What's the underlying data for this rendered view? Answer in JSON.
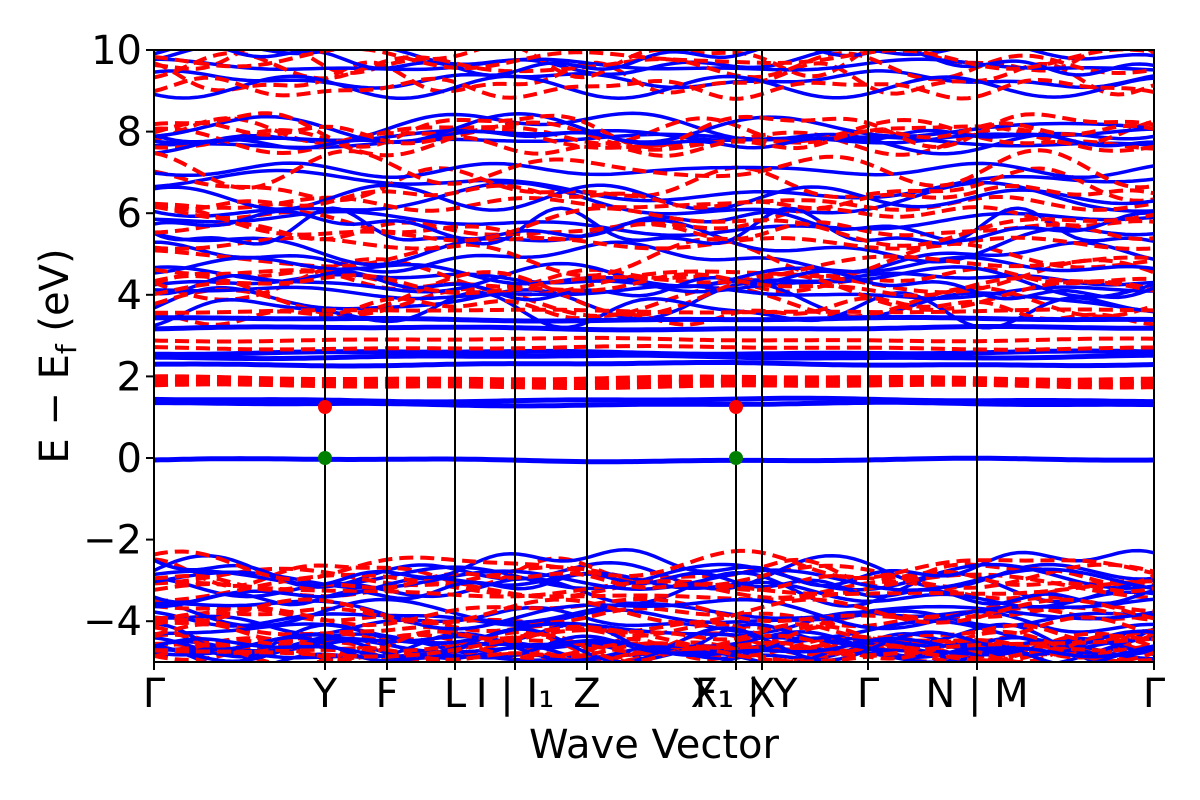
{
  "chart_data": {
    "type": "line",
    "title": "",
    "xlabel": "Wave Vector",
    "ylabel_parts": {
      "main": "E − E",
      "subscript": "f",
      "unit": " (eV)"
    },
    "ylim": [
      -5,
      10
    ],
    "yticks": [
      -4,
      -2,
      0,
      2,
      4,
      6,
      8,
      10
    ],
    "ytick_labels": [
      "−4",
      "−2",
      "0",
      "2",
      "4",
      "6",
      "8",
      "10"
    ],
    "xlim": [
      0,
      1
    ],
    "kpoints": [
      {
        "pos": 0.0,
        "label": "Γ"
      },
      {
        "pos": 0.171,
        "label": "Y"
      },
      {
        "pos": 0.233,
        "label": "F"
      },
      {
        "pos": 0.301,
        "label": "L"
      },
      {
        "pos": 0.361,
        "label": "I | I₁"
      },
      {
        "pos": 0.433,
        "label": "Z"
      },
      {
        "pos": 0.582,
        "label": "F₁"
      },
      {
        "pos": 0.582,
        "label": "X₁ | Y"
      },
      {
        "pos": 0.608,
        "label": "X"
      },
      {
        "pos": 0.714,
        "label": "Γ"
      },
      {
        "pos": 0.823,
        "label": "N | M"
      },
      {
        "pos": 1.0,
        "label": "Γ"
      }
    ],
    "series_styles": [
      {
        "id": "spin-up",
        "color": "#0000ff",
        "dash": "solid"
      },
      {
        "id": "spin-down",
        "color": "#ff0000",
        "dash": "dashed"
      }
    ],
    "valence_band_max": {
      "x": 0.171,
      "y": 0.0,
      "color": "#008000"
    },
    "valence_band_max_2": {
      "x": 0.582,
      "y": 0.0,
      "color": "#008000"
    },
    "conduction_band_min": {
      "x": 0.171,
      "y": 1.25,
      "color": "#ff0000"
    },
    "conduction_band_min_2": {
      "x": 0.582,
      "y": 1.25,
      "color": "#ff0000"
    },
    "blue_flat_bands": [
      -0.05,
      1.32,
      1.42,
      2.3,
      2.48,
      2.58,
      3.18,
      3.4
    ],
    "red_flat_bands": [
      1.82,
      1.9,
      2.7,
      2.9,
      3.6
    ],
    "low_band_center": -3.6,
    "high_band_center": 7.0
  }
}
